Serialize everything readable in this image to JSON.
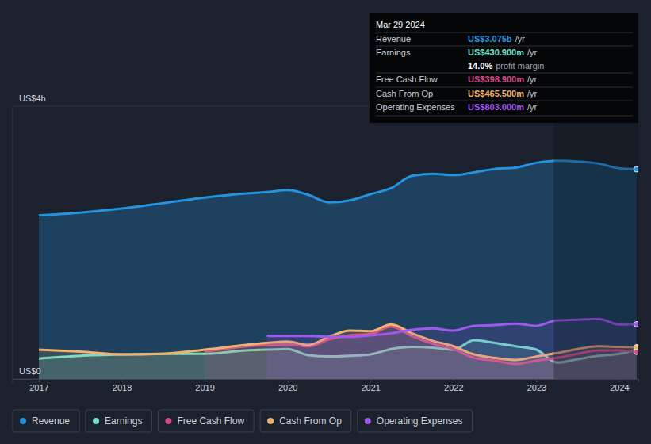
{
  "chart_data": {
    "type": "area",
    "x": [
      2017,
      2017.5,
      2018,
      2018.5,
      2019,
      2019.5,
      2019.75,
      2020,
      2020.25,
      2020.5,
      2020.75,
      2021,
      2021.25,
      2021.5,
      2021.75,
      2022,
      2022.25,
      2022.5,
      2022.75,
      2023,
      2023.25,
      2023.5,
      2023.75,
      2024,
      2024.21
    ],
    "xlim": [
      2016.68,
      2024.23
    ],
    "xticks": [
      2017,
      2018,
      2019,
      2020,
      2021,
      2022,
      2023,
      2024
    ],
    "ylim": [
      0,
      4
    ],
    "yticks": [
      {
        "value": 0,
        "label": "US$0"
      },
      {
        "value": 4,
        "label": "US$4b"
      }
    ],
    "grid": true,
    "legend": "bottom",
    "series": [
      {
        "name": "Revenue",
        "color": "#2394df",
        "values": [
          2.4,
          2.44,
          2.5,
          2.58,
          2.66,
          2.72,
          2.74,
          2.77,
          2.7,
          2.59,
          2.62,
          2.71,
          2.8,
          2.98,
          3.01,
          2.99,
          3.03,
          3.08,
          3.1,
          3.17,
          3.2,
          3.19,
          3.16,
          3.09,
          3.075
        ]
      },
      {
        "name": "Earnings",
        "color": "#73e0c9",
        "values": [
          0.3,
          0.34,
          0.36,
          0.37,
          0.37,
          0.42,
          0.43,
          0.44,
          0.35,
          0.33,
          0.34,
          0.36,
          0.44,
          0.47,
          0.46,
          0.43,
          0.57,
          0.53,
          0.48,
          0.43,
          0.24,
          0.29,
          0.34,
          0.37,
          0.4309
        ]
      },
      {
        "name": "Free Cash Flow",
        "color": "#d64a89",
        "values": [
          null,
          null,
          null,
          null,
          0.4,
          0.48,
          0.5,
          0.51,
          0.48,
          0.58,
          0.64,
          0.66,
          0.77,
          0.63,
          0.52,
          0.44,
          0.31,
          0.27,
          0.22,
          0.27,
          0.31,
          0.37,
          0.42,
          0.42,
          0.3989
        ]
      },
      {
        "name": "Cash From Op",
        "color": "#f2b26d",
        "values": [
          0.43,
          0.4,
          0.36,
          0.37,
          0.43,
          0.5,
          0.53,
          0.55,
          0.5,
          0.62,
          0.71,
          0.7,
          0.8,
          0.67,
          0.56,
          0.48,
          0.36,
          0.31,
          0.28,
          0.33,
          0.38,
          0.44,
          0.48,
          0.47,
          0.4655
        ]
      },
      {
        "name": "Operating Expenses",
        "color": "#a157f0",
        "values": [
          null,
          null,
          null,
          null,
          null,
          null,
          0.63,
          0.63,
          0.63,
          0.62,
          0.62,
          0.64,
          0.67,
          0.72,
          0.74,
          0.71,
          0.78,
          0.79,
          0.81,
          0.78,
          0.86,
          0.87,
          0.88,
          0.8,
          0.803
        ]
      }
    ],
    "tooltip": {
      "date": "Mar 29 2024",
      "rows": [
        {
          "label": "Revenue",
          "value": "US$3.075b",
          "unit": "/yr"
        },
        {
          "label": "Earnings",
          "value": "US$430.900m",
          "unit": "/yr"
        },
        {
          "value": "14.0%",
          "label": "profit margin"
        },
        {
          "label": "Free Cash Flow",
          "value": "US$398.900m",
          "unit": "/yr"
        },
        {
          "label": "Cash From Op",
          "value": "US$465.500m",
          "unit": "/yr"
        },
        {
          "label": "Operating Expenses",
          "value": "US$803.000m",
          "unit": "/yr"
        }
      ]
    }
  }
}
